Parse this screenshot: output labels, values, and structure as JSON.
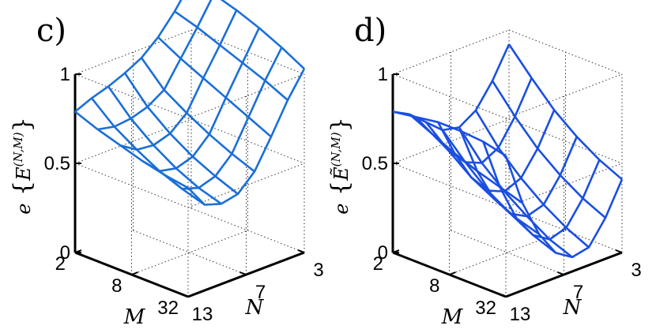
{
  "chart_data": [
    {
      "type": "surface",
      "panel_label": "c)",
      "zlabel": {
        "lead": "e",
        "brace_open": "{",
        "var": "E",
        "sup": "(N,M)",
        "brace_close": "}"
      },
      "x": {
        "label": "M",
        "tick_labels": [
          "2",
          "8",
          "32"
        ]
      },
      "y": {
        "label": "N",
        "tick_labels": [
          "3",
          "7",
          "13"
        ]
      },
      "z": {
        "tick_labels": [
          "0",
          "0.5",
          "1"
        ],
        "range": [
          0,
          1
        ]
      },
      "grid": true,
      "line_color": "#1a6fd8",
      "z_values": [
        [
          0.79,
          0.83,
          0.86,
          0.9,
          0.95,
          1.03,
          1.14,
          1.27
        ],
        [
          0.74,
          0.72,
          0.73,
          0.76,
          0.82,
          0.96,
          1.1,
          1.25
        ],
        [
          0.7,
          0.64,
          0.63,
          0.66,
          0.74,
          0.9,
          1.05,
          1.21
        ],
        [
          0.66,
          0.57,
          0.55,
          0.58,
          0.67,
          0.84,
          1.0,
          1.16
        ],
        [
          0.63,
          0.52,
          0.49,
          0.52,
          0.61,
          0.78,
          0.95,
          1.1
        ],
        [
          0.61,
          0.48,
          0.45,
          0.47,
          0.56,
          0.72,
          0.89,
          1.03
        ]
      ]
    },
    {
      "type": "surface",
      "panel_label": "d)",
      "zlabel": {
        "lead": "e",
        "brace_open": "{",
        "var": "Ẽ",
        "sup": "(N,M)",
        "brace_close": "}"
      },
      "x": {
        "label": "M",
        "tick_labels": [
          "2",
          "8",
          "32"
        ]
      },
      "y": {
        "label": "N",
        "tick_labels": [
          "3",
          "7",
          "13"
        ]
      },
      "z": {
        "tick_labels": [
          "0",
          "0.5",
          "1"
        ],
        "range": [
          0,
          1
        ]
      },
      "grid": true,
      "line_color": "#1a4fe0",
      "z_values": [
        [
          0.79,
          0.74,
          0.66,
          0.58,
          0.56,
          0.62,
          0.75,
          0.92
        ],
        [
          0.81,
          0.68,
          0.55,
          0.45,
          0.41,
          0.46,
          0.6,
          0.78
        ],
        [
          0.83,
          0.62,
          0.45,
          0.34,
          0.3,
          0.34,
          0.47,
          0.65
        ],
        [
          0.83,
          0.57,
          0.38,
          0.26,
          0.21,
          0.24,
          0.37,
          0.55
        ],
        [
          0.82,
          0.53,
          0.32,
          0.19,
          0.13,
          0.16,
          0.29,
          0.47
        ],
        [
          0.79,
          0.49,
          0.28,
          0.14,
          0.08,
          0.1,
          0.23,
          0.41
        ]
      ]
    }
  ]
}
